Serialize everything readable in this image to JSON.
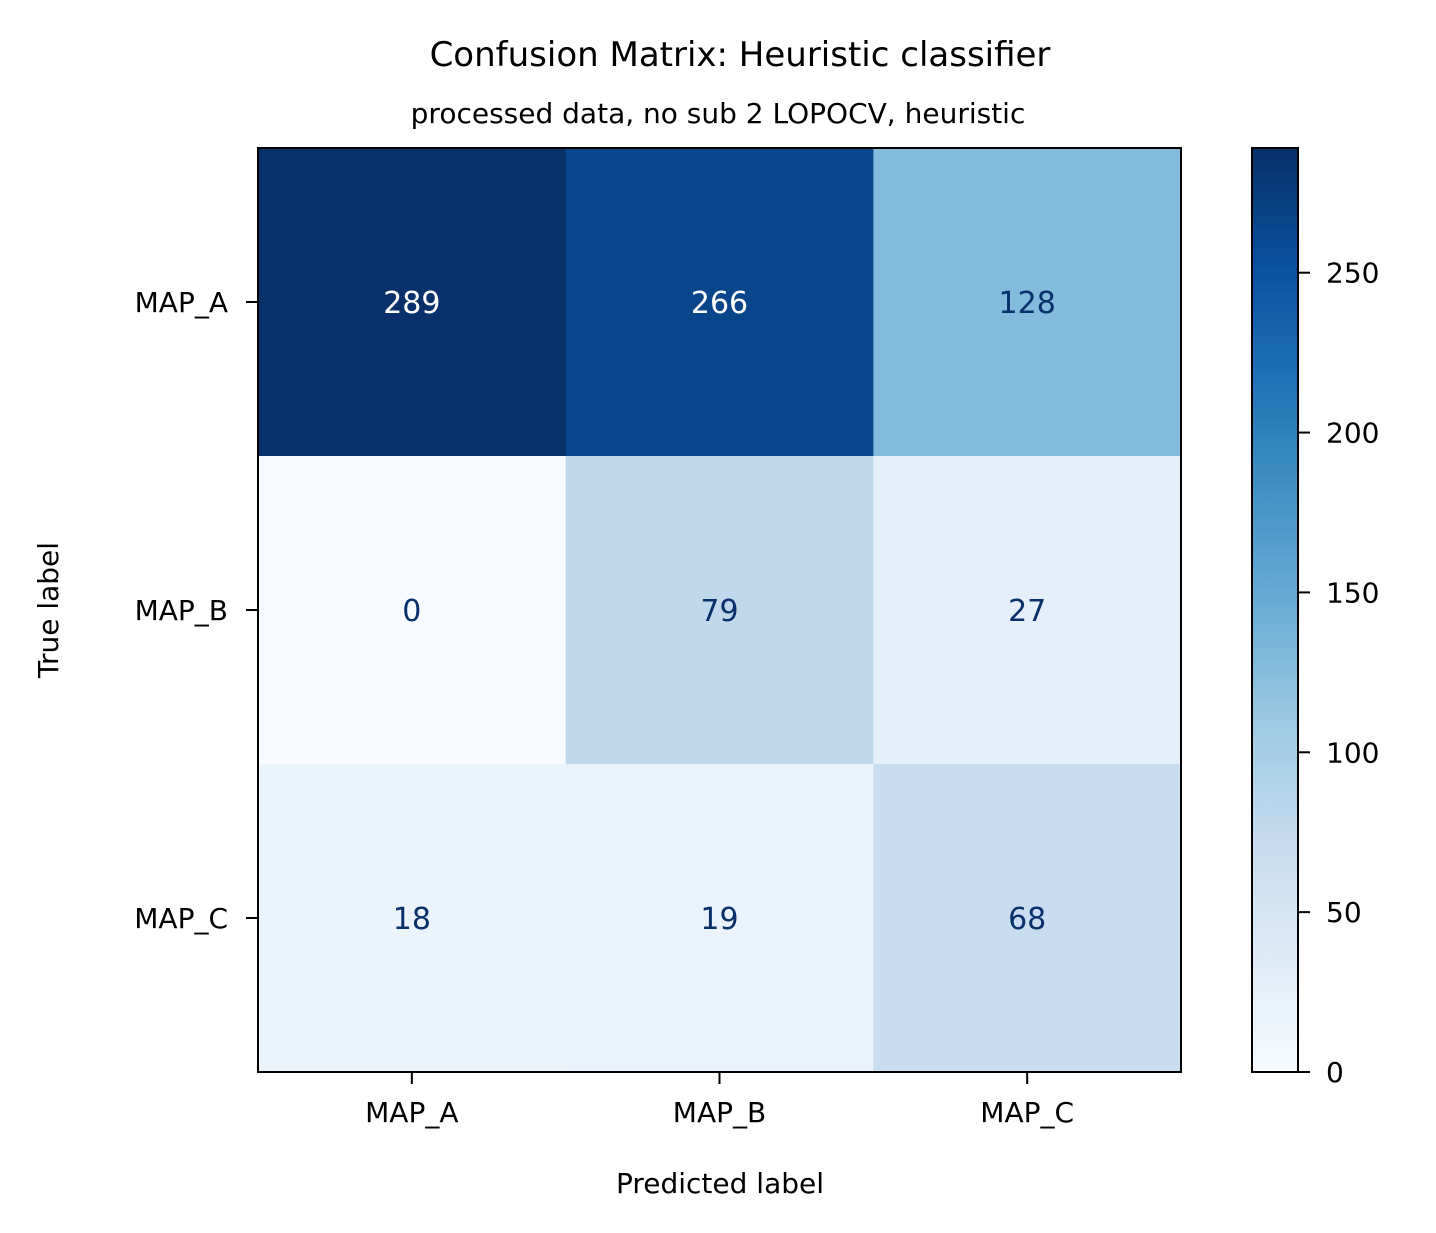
{
  "chart_data": {
    "type": "heatmap",
    "title": "Confusion Matrix: Heuristic classifier",
    "subtitle": "processed data, no sub 2 LOPOCV, heuristic",
    "xlabel": "Predicted label",
    "ylabel": "True label",
    "x_categories": [
      "MAP_A",
      "MAP_B",
      "MAP_C"
    ],
    "y_categories": [
      "MAP_A",
      "MAP_B",
      "MAP_C"
    ],
    "values": [
      [
        289,
        266,
        128
      ],
      [
        0,
        79,
        27
      ],
      [
        18,
        19,
        68
      ]
    ],
    "colormap": "Blues",
    "color_range": [
      0,
      289
    ],
    "colorbar_ticks": [
      0,
      50,
      100,
      150,
      200,
      250
    ],
    "text_color_dark_cells": "#ffffff",
    "text_color_light_cells": "#08306b",
    "grid": false
  }
}
